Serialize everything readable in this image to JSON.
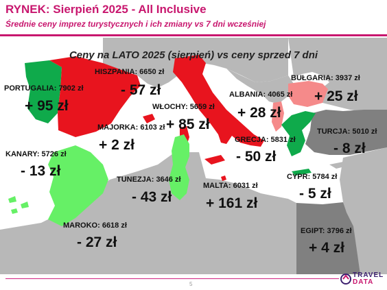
{
  "header": {
    "title": "RYNEK: Sierpień 2025 - All Inclusive",
    "subtitle": "Średnie ceny imprez turystycznych i ich zmiany vs 7 dni wcześniej"
  },
  "map": {
    "title": "Ceny na LATO 2025 (sierpień) vs ceny sprzed 7 dni",
    "colors": {
      "sea": "#ffffff",
      "land": "#b8b8b8",
      "land_dark": "#808080",
      "strong_increase": "#e8141e",
      "increase": "#f58a8a",
      "strong_decrease": "#0faa4b",
      "decrease": "#66f066",
      "label_text": "#111111"
    },
    "destinations": [
      {
        "id": "portugalia",
        "label": "PORTUGALIA: 7902 zł",
        "change": "+ 95 zł"
      },
      {
        "id": "hiszpania",
        "label": "HISZPANIA: 6650 zł",
        "change": "- 57 zł"
      },
      {
        "id": "wlochy",
        "label": "WŁOCHY: 5659 zł",
        "change": "+ 85 zł"
      },
      {
        "id": "albania",
        "label": "ALBANIA: 4065 zł",
        "change": "+ 28 zł"
      },
      {
        "id": "bulgaria",
        "label": "BUŁGARIA: 3937 zł",
        "change": "+ 25 zł"
      },
      {
        "id": "majorka",
        "label": "MAJORKA: 6103 zł",
        "change": "+ 2 zł"
      },
      {
        "id": "turcja",
        "label": "TURCJA: 5010 zł",
        "change": "- 8 zł"
      },
      {
        "id": "grecja",
        "label": "GRECJA: 5831 zł",
        "change": "- 50 zł"
      },
      {
        "id": "kanary",
        "label": "KANARY: 5726 zł",
        "change": "- 13 zł"
      },
      {
        "id": "tunezja",
        "label": "TUNEZJA: 3646 zł",
        "change": "- 43 zł"
      },
      {
        "id": "malta",
        "label": "MALTA: 6031 zł",
        "change": "+ 161 zł"
      },
      {
        "id": "cypr",
        "label": "CYPR: 5784 zł",
        "change": "- 5 zł"
      },
      {
        "id": "maroko",
        "label": "MAROKO: 6618 zł",
        "change": "- 27 zł"
      },
      {
        "id": "egipt",
        "label": "EGIPT: 3796 zł",
        "change": "+ 4 zł"
      }
    ]
  },
  "footer": {
    "page_number": "5",
    "logo_top": "TRAVEL",
    "logo_bottom": "DATA"
  }
}
